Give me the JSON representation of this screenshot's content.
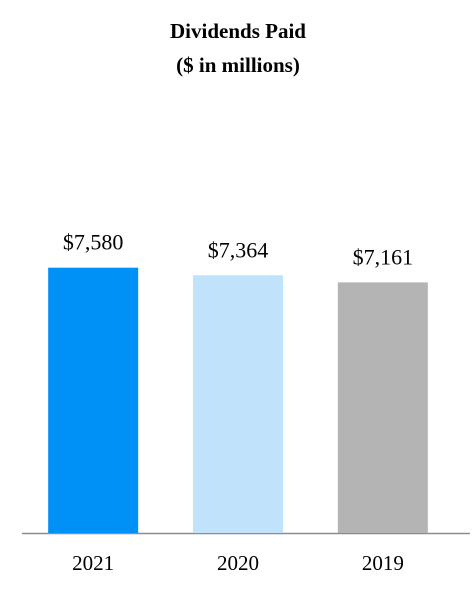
{
  "chart_data": {
    "type": "bar",
    "title": "Dividends Paid",
    "subtitle": "($ in millions)",
    "categories": [
      "2021",
      "2020",
      "2019"
    ],
    "values": [
      7580,
      7364,
      7161
    ],
    "value_labels": [
      "$7,580",
      "$7,364",
      "$7,161"
    ],
    "colors": [
      "#0091f7",
      "#c0e3fb",
      "#b4b4b4"
    ],
    "ylim": [
      0,
      10000
    ]
  }
}
